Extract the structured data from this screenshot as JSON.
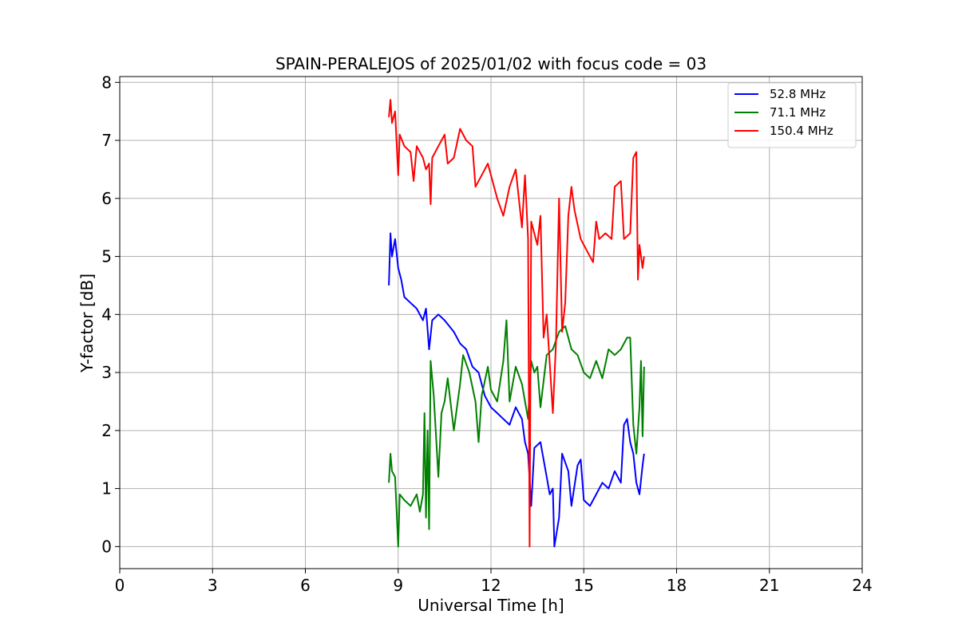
{
  "chart_data": {
    "type": "line",
    "title": "SPAIN-PERALEJOS of 2025/01/02 with focus code = 03",
    "xlabel": "Universal Time [h]",
    "ylabel": "Y-factor [dB]",
    "xlim": [
      0,
      24
    ],
    "ylim": [
      -0.38,
      8.1
    ],
    "xticks": [
      0,
      3,
      6,
      9,
      12,
      15,
      18,
      21,
      24
    ],
    "yticks": [
      0,
      1,
      2,
      3,
      4,
      5,
      6,
      7,
      8
    ],
    "grid": true,
    "legend_position": "top-right",
    "series": [
      {
        "name": "  52.8 MHz",
        "color": "#0000ff",
        "points": [
          [
            8.7,
            4.5
          ],
          [
            8.75,
            5.4
          ],
          [
            8.8,
            5.0
          ],
          [
            8.9,
            5.3
          ],
          [
            9.0,
            4.8
          ],
          [
            9.1,
            4.6
          ],
          [
            9.2,
            4.3
          ],
          [
            9.4,
            4.2
          ],
          [
            9.6,
            4.1
          ],
          [
            9.8,
            3.9
          ],
          [
            9.9,
            4.1
          ],
          [
            10.0,
            3.4
          ],
          [
            10.1,
            3.9
          ],
          [
            10.3,
            4.0
          ],
          [
            10.5,
            3.9
          ],
          [
            10.8,
            3.7
          ],
          [
            11.0,
            3.5
          ],
          [
            11.2,
            3.4
          ],
          [
            11.4,
            3.1
          ],
          [
            11.6,
            3.0
          ],
          [
            11.8,
            2.6
          ],
          [
            12.0,
            2.4
          ],
          [
            12.2,
            2.3
          ],
          [
            12.4,
            2.2
          ],
          [
            12.6,
            2.1
          ],
          [
            12.8,
            2.4
          ],
          [
            13.0,
            2.2
          ],
          [
            13.1,
            1.8
          ],
          [
            13.2,
            1.6
          ],
          [
            13.3,
            0.7
          ],
          [
            13.4,
            1.7
          ],
          [
            13.6,
            1.8
          ],
          [
            13.8,
            1.2
          ],
          [
            13.9,
            0.9
          ],
          [
            14.0,
            1.0
          ],
          [
            14.05,
            0.0
          ],
          [
            14.2,
            0.5
          ],
          [
            14.3,
            1.6
          ],
          [
            14.5,
            1.3
          ],
          [
            14.6,
            0.7
          ],
          [
            14.8,
            1.4
          ],
          [
            14.9,
            1.5
          ],
          [
            15.0,
            0.8
          ],
          [
            15.2,
            0.7
          ],
          [
            15.4,
            0.9
          ],
          [
            15.6,
            1.1
          ],
          [
            15.8,
            1.0
          ],
          [
            16.0,
            1.3
          ],
          [
            16.2,
            1.1
          ],
          [
            16.3,
            2.1
          ],
          [
            16.4,
            2.2
          ],
          [
            16.5,
            1.8
          ],
          [
            16.6,
            1.6
          ],
          [
            16.7,
            1.1
          ],
          [
            16.8,
            0.9
          ],
          [
            16.9,
            1.4
          ],
          [
            16.95,
            1.6
          ]
        ]
      },
      {
        "name": "  71.1 MHz",
        "color": "#008000",
        "points": [
          [
            8.7,
            1.1
          ],
          [
            8.75,
            1.6
          ],
          [
            8.8,
            1.3
          ],
          [
            8.9,
            1.2
          ],
          [
            9.0,
            0.0
          ],
          [
            9.05,
            0.9
          ],
          [
            9.2,
            0.8
          ],
          [
            9.4,
            0.7
          ],
          [
            9.6,
            0.9
          ],
          [
            9.7,
            0.6
          ],
          [
            9.8,
            0.9
          ],
          [
            9.85,
            2.3
          ],
          [
            9.9,
            0.5
          ],
          [
            9.95,
            2.0
          ],
          [
            10.0,
            0.3
          ],
          [
            10.05,
            3.2
          ],
          [
            10.15,
            2.6
          ],
          [
            10.3,
            1.2
          ],
          [
            10.4,
            2.3
          ],
          [
            10.5,
            2.5
          ],
          [
            10.6,
            2.9
          ],
          [
            10.8,
            2.0
          ],
          [
            11.0,
            2.8
          ],
          [
            11.1,
            3.3
          ],
          [
            11.3,
            3.0
          ],
          [
            11.5,
            2.5
          ],
          [
            11.6,
            1.8
          ],
          [
            11.7,
            2.6
          ],
          [
            11.9,
            3.1
          ],
          [
            12.0,
            2.7
          ],
          [
            12.2,
            2.5
          ],
          [
            12.4,
            3.2
          ],
          [
            12.5,
            3.9
          ],
          [
            12.6,
            2.5
          ],
          [
            12.8,
            3.1
          ],
          [
            13.0,
            2.8
          ],
          [
            13.2,
            2.2
          ],
          [
            13.3,
            3.2
          ],
          [
            13.4,
            3.0
          ],
          [
            13.5,
            3.1
          ],
          [
            13.6,
            2.4
          ],
          [
            13.8,
            3.3
          ],
          [
            14.0,
            3.4
          ],
          [
            14.2,
            3.7
          ],
          [
            14.4,
            3.8
          ],
          [
            14.6,
            3.4
          ],
          [
            14.8,
            3.3
          ],
          [
            15.0,
            3.0
          ],
          [
            15.2,
            2.9
          ],
          [
            15.4,
            3.2
          ],
          [
            15.6,
            2.9
          ],
          [
            15.8,
            3.4
          ],
          [
            16.0,
            3.3
          ],
          [
            16.2,
            3.4
          ],
          [
            16.4,
            3.6
          ],
          [
            16.5,
            3.6
          ],
          [
            16.6,
            2.1
          ],
          [
            16.7,
            1.6
          ],
          [
            16.8,
            2.4
          ],
          [
            16.85,
            3.2
          ],
          [
            16.9,
            1.9
          ],
          [
            16.95,
            3.1
          ]
        ]
      },
      {
        "name": "  150.4 MHz",
        "color": "#ff0000",
        "points": [
          [
            8.7,
            7.4
          ],
          [
            8.75,
            7.7
          ],
          [
            8.8,
            7.3
          ],
          [
            8.9,
            7.5
          ],
          [
            9.0,
            6.4
          ],
          [
            9.05,
            7.1
          ],
          [
            9.2,
            6.9
          ],
          [
            9.4,
            6.8
          ],
          [
            9.5,
            6.3
          ],
          [
            9.6,
            6.9
          ],
          [
            9.8,
            6.7
          ],
          [
            9.9,
            6.5
          ],
          [
            10.0,
            6.6
          ],
          [
            10.05,
            5.9
          ],
          [
            10.1,
            6.7
          ],
          [
            10.3,
            6.9
          ],
          [
            10.5,
            7.1
          ],
          [
            10.6,
            6.6
          ],
          [
            10.8,
            6.7
          ],
          [
            11.0,
            7.2
          ],
          [
            11.2,
            7.0
          ],
          [
            11.4,
            6.9
          ],
          [
            11.5,
            6.2
          ],
          [
            11.7,
            6.4
          ],
          [
            11.9,
            6.6
          ],
          [
            12.0,
            6.4
          ],
          [
            12.2,
            6.0
          ],
          [
            12.4,
            5.7
          ],
          [
            12.6,
            6.2
          ],
          [
            12.8,
            6.5
          ],
          [
            13.0,
            5.5
          ],
          [
            13.1,
            6.4
          ],
          [
            13.2,
            5.3
          ],
          [
            13.25,
            0.0
          ],
          [
            13.3,
            5.6
          ],
          [
            13.5,
            5.2
          ],
          [
            13.6,
            5.7
          ],
          [
            13.7,
            3.6
          ],
          [
            13.8,
            4.0
          ],
          [
            14.0,
            2.3
          ],
          [
            14.1,
            3.5
          ],
          [
            14.2,
            6.0
          ],
          [
            14.3,
            3.7
          ],
          [
            14.4,
            4.2
          ],
          [
            14.5,
            5.7
          ],
          [
            14.6,
            6.2
          ],
          [
            14.7,
            5.8
          ],
          [
            14.9,
            5.3
          ],
          [
            15.1,
            5.1
          ],
          [
            15.3,
            4.9
          ],
          [
            15.4,
            5.6
          ],
          [
            15.5,
            5.3
          ],
          [
            15.7,
            5.4
          ],
          [
            15.9,
            5.3
          ],
          [
            16.0,
            6.2
          ],
          [
            16.2,
            6.3
          ],
          [
            16.3,
            5.3
          ],
          [
            16.5,
            5.4
          ],
          [
            16.6,
            6.7
          ],
          [
            16.7,
            6.8
          ],
          [
            16.75,
            4.6
          ],
          [
            16.8,
            5.2
          ],
          [
            16.9,
            4.8
          ],
          [
            16.95,
            5.0
          ]
        ]
      }
    ]
  }
}
